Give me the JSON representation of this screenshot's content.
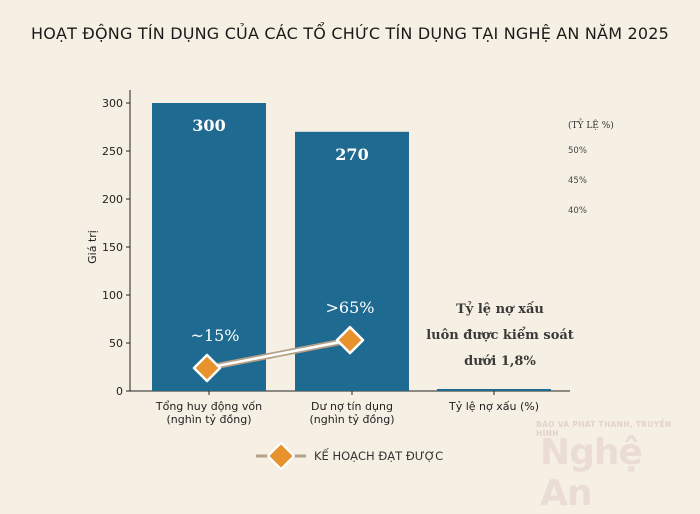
{
  "chart_data": {
    "type": "bar",
    "title": "HOẠT ĐỘNG TÍN DỤNG CỦA CÁC TỔ CHỨC TÍN DỤNG TẠI NGHỆ AN NĂM 2025",
    "ylabel": "Giá trị",
    "ylim": [
      0,
      300
    ],
    "yticks": [
      0,
      50,
      100,
      150,
      200,
      250,
      300
    ],
    "categories": [
      [
        "Tổng huy động vốn",
        "(nghìn tỷ đồng)"
      ],
      [
        "Dư nợ tín dụng",
        "(nghìn tỷ đồng)"
      ],
      [
        "Tỷ lệ nợ xấu (%)"
      ]
    ],
    "values": [
      300,
      270,
      1.8
    ],
    "bar_labels": [
      "300",
      "270",
      ""
    ],
    "bar_color": "#1f6a91",
    "plan_line": {
      "name": "KẾ HOẠCH ĐẠT ĐƯỢC",
      "values": [
        24,
        53
      ],
      "labels": [
        "~15%",
        ">65%"
      ],
      "marker_color": "#e8922e",
      "line_color": "#b5a189"
    },
    "secondary_axis": {
      "title": "(TỶ LỆ %)",
      "ticks": [
        "50%",
        "45%",
        "40%"
      ]
    },
    "annotation": [
      "Tỷ lệ nợ xấu",
      "luôn được kiểm soát",
      "dưới 1,8%"
    ],
    "grid": false,
    "legend": "bottom-center"
  },
  "watermark": {
    "line1": "BÁO VÀ PHÁT THANH, TRUYỀN HÌNH",
    "line2": "Nghệ An"
  }
}
